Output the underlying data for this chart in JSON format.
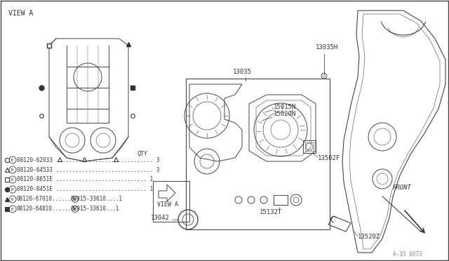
{
  "bg_color": "#ffffff",
  "line_color": "#444444",
  "text_color": "#333333",
  "view_a": "VIEW A",
  "front": "FRONT",
  "qty": "QTY",
  "watermark": "A-35 0073",
  "label_13035": "13035",
  "label_13035H": "13035H",
  "label_15015N": "15015N",
  "label_15020N": "15020N",
  "label_13502F": "13502F",
  "label_13042": "13042",
  "label_15132T": "15132T",
  "label_13520Z": "13520Z",
  "parts": [
    {
      "sym": "o",
      "filled": false,
      "part": "08120-62033",
      "dots": 30,
      "qty": "3"
    },
    {
      "sym": "^",
      "filled": false,
      "part": "08120-64533",
      "dots": 30,
      "qty": "3"
    },
    {
      "sym": "s",
      "filled": false,
      "part": "08120-8651E",
      "dots": 28,
      "qty": "1"
    },
    {
      "sym": "o",
      "filled": true,
      "part": "08120-8451E",
      "dots": 28,
      "qty": "1"
    },
    {
      "sym": "^",
      "filled": true,
      "part": "08120-67010...",
      "w": "W",
      "wpart": "08915-33610....1"
    },
    {
      "sym": "s",
      "filled": true,
      "part": "08120-64810...",
      "w": "W",
      "wpart": "08915-33610...1"
    }
  ]
}
